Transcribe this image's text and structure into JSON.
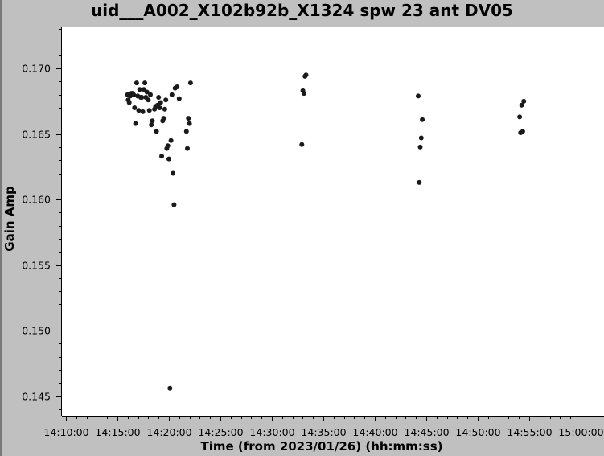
{
  "chart_data": {
    "type": "scatter",
    "title": "uid___A002_X102b92b_X1324 spw 23 ant DV05",
    "xlabel": "Time (from 2023/01/26) (hh:mm:ss)",
    "ylabel": "Gain Amp",
    "x_ticks": [
      "14:10:00",
      "14:15:00",
      "14:20:00",
      "14:25:00",
      "14:30:00",
      "14:35:00",
      "14:40:00",
      "14:45:00",
      "14:50:00",
      "14:55:00",
      "15:00:00"
    ],
    "y_ticks": [
      "0.145",
      "0.150",
      "0.155",
      "0.160",
      "0.165",
      "0.170"
    ],
    "xlim": [
      "14:10:00",
      "15:00:00"
    ],
    "ylim": [
      0.1435,
      0.1732
    ],
    "grid": false,
    "marker_color": "#1a1a1a",
    "points": [
      [
        "14:15:59",
        0.168
      ],
      [
        "14:16:03",
        0.1676
      ],
      [
        "14:16:09",
        0.1674
      ],
      [
        "14:16:15",
        0.1679
      ],
      [
        "14:16:21",
        0.1681
      ],
      [
        "14:16:28",
        0.1681
      ],
      [
        "14:16:34",
        0.168
      ],
      [
        "14:16:40",
        0.167
      ],
      [
        "14:16:46",
        0.1658
      ],
      [
        "14:16:52",
        0.1689
      ],
      [
        "14:16:58",
        0.1679
      ],
      [
        "14:17:04",
        0.1668
      ],
      [
        "14:17:10",
        0.1684
      ],
      [
        "14:17:16",
        0.1678
      ],
      [
        "14:17:22",
        0.1678
      ],
      [
        "14:17:28",
        0.1667
      ],
      [
        "14:17:34",
        0.1684
      ],
      [
        "14:17:40",
        0.1689
      ],
      [
        "14:17:46",
        0.1678
      ],
      [
        "14:17:52",
        0.1682
      ],
      [
        "14:18:00",
        0.1676
      ],
      [
        "14:18:06",
        0.1668
      ],
      [
        "14:18:12",
        0.168
      ],
      [
        "14:18:18",
        0.1657
      ],
      [
        "14:18:24",
        0.166
      ],
      [
        "14:18:36",
        0.1669
      ],
      [
        "14:18:42",
        0.1671
      ],
      [
        "14:18:48",
        0.1652
      ],
      [
        "14:18:54",
        0.1672
      ],
      [
        "14:19:00",
        0.1678
      ],
      [
        "14:19:06",
        0.167
      ],
      [
        "14:19:12",
        0.1674
      ],
      [
        "14:19:18",
        0.1633
      ],
      [
        "14:19:24",
        0.166
      ],
      [
        "14:19:30",
        0.1662
      ],
      [
        "14:19:36",
        0.1669
      ],
      [
        "14:19:42",
        0.1676
      ],
      [
        "14:19:48",
        0.1639
      ],
      [
        "14:19:54",
        0.1641
      ],
      [
        "14:20:00",
        0.1631
      ],
      [
        "14:20:06",
        0.1456
      ],
      [
        "14:20:12",
        0.1645
      ],
      [
        "14:20:18",
        0.168
      ],
      [
        "14:20:24",
        0.162
      ],
      [
        "14:20:30",
        0.1596
      ],
      [
        "14:20:36",
        0.1685
      ],
      [
        "14:20:48",
        0.1686
      ],
      [
        "14:21:00",
        0.1677
      ],
      [
        "14:21:42",
        0.1652
      ],
      [
        "14:21:48",
        0.1639
      ],
      [
        "14:21:54",
        0.1662
      ],
      [
        "14:22:00",
        0.1658
      ],
      [
        "14:22:06",
        0.1689
      ],
      [
        "14:32:55",
        0.1642
      ],
      [
        "14:33:01",
        0.1683
      ],
      [
        "14:33:07",
        0.1681
      ],
      [
        "14:33:13",
        0.1694
      ],
      [
        "14:33:19",
        0.1695
      ],
      [
        "14:44:13",
        0.1679
      ],
      [
        "14:44:19",
        0.1613
      ],
      [
        "14:44:25",
        0.164
      ],
      [
        "14:44:31",
        0.1647
      ],
      [
        "14:44:37",
        0.1661
      ],
      [
        "14:54:04",
        0.1663
      ],
      [
        "14:54:10",
        0.1651
      ],
      [
        "14:54:16",
        0.1672
      ],
      [
        "14:54:22",
        0.1652
      ],
      [
        "14:54:28",
        0.1675
      ]
    ]
  }
}
